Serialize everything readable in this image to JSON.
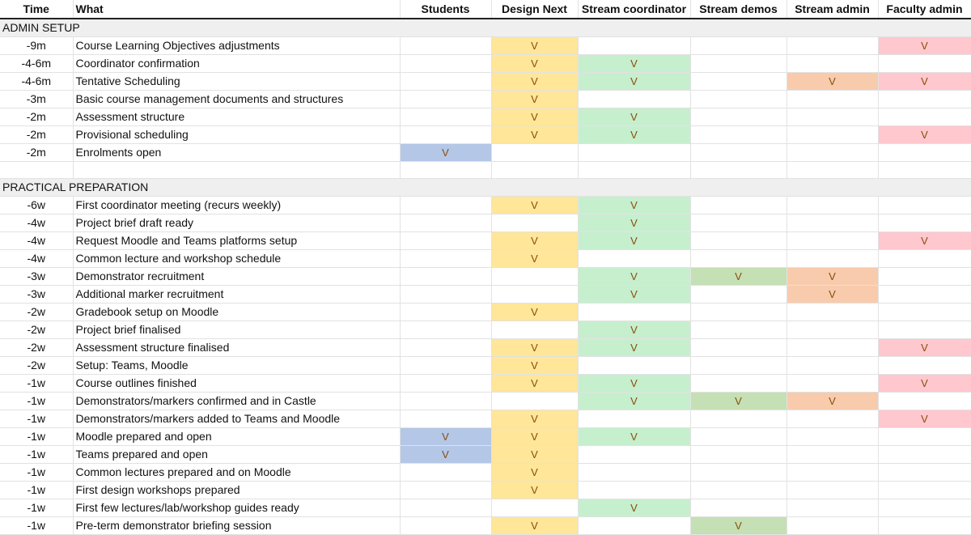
{
  "colors": {
    "students": "#b4c7e7",
    "design_next": "#ffe699",
    "stream_coordinator": "#c6efce",
    "stream_demos": "#c5e0b4",
    "stream_admin": "#f8cbad",
    "faculty_admin": "#ffc7ce"
  },
  "headers": {
    "time": "Time",
    "what": "What",
    "roles": [
      "Students",
      "Design Next",
      "Stream coordinator",
      "Stream demos",
      "Stream admin",
      "Faculty admin"
    ]
  },
  "mark": "V",
  "sections": [
    {
      "title": "ADMIN SETUP",
      "rows": [
        {
          "time": "-9m",
          "what": "Course Learning Objectives adjustments",
          "marks": [
            0,
            1,
            0,
            0,
            0,
            1
          ]
        },
        {
          "time": "-4-6m",
          "what": "Coordinator confirmation",
          "marks": [
            0,
            1,
            1,
            0,
            0,
            0
          ]
        },
        {
          "time": "-4-6m",
          "what": "Tentative Scheduling",
          "marks": [
            0,
            1,
            1,
            0,
            1,
            1
          ]
        },
        {
          "time": "-3m",
          "what": "Basic course management documents and structures",
          "marks": [
            0,
            1,
            0,
            0,
            0,
            0
          ]
        },
        {
          "time": "-2m",
          "what": "Assessment structure",
          "marks": [
            0,
            1,
            1,
            0,
            0,
            0
          ]
        },
        {
          "time": "-2m",
          "what": "Provisional scheduling",
          "marks": [
            0,
            1,
            1,
            0,
            0,
            1
          ]
        },
        {
          "time": "-2m",
          "what": "Enrolments open",
          "marks": [
            1,
            0,
            0,
            0,
            0,
            0
          ]
        }
      ]
    },
    {
      "title": "PRACTICAL PREPARATION",
      "rows": [
        {
          "time": "-6w",
          "what": "First coordinator meeting (recurs weekly)",
          "marks": [
            0,
            1,
            1,
            0,
            0,
            0
          ]
        },
        {
          "time": "-4w",
          "what": "Project brief draft ready",
          "marks": [
            0,
            0,
            1,
            0,
            0,
            0
          ]
        },
        {
          "time": "-4w",
          "what": "Request Moodle and Teams platforms setup",
          "marks": [
            0,
            1,
            1,
            0,
            0,
            1
          ]
        },
        {
          "time": "-4w",
          "what": "Common lecture and workshop schedule",
          "marks": [
            0,
            1,
            0,
            0,
            0,
            0
          ]
        },
        {
          "time": "-3w",
          "what": "Demonstrator recruitment",
          "marks": [
            0,
            0,
            1,
            1,
            1,
            0
          ]
        },
        {
          "time": "-3w",
          "what": "Additional marker recruitment",
          "marks": [
            0,
            0,
            1,
            0,
            1,
            0
          ]
        },
        {
          "time": "-2w",
          "what": "Gradebook setup on Moodle",
          "marks": [
            0,
            1,
            0,
            0,
            0,
            0
          ]
        },
        {
          "time": "-2w",
          "what": "Project brief finalised",
          "marks": [
            0,
            0,
            1,
            0,
            0,
            0
          ]
        },
        {
          "time": "-2w",
          "what": "Assessment structure finalised",
          "marks": [
            0,
            1,
            1,
            0,
            0,
            1
          ]
        },
        {
          "time": "-2w",
          "what": "Setup: Teams, Moodle",
          "marks": [
            0,
            1,
            0,
            0,
            0,
            0
          ]
        },
        {
          "time": "-1w",
          "what": "Course outlines finished",
          "marks": [
            0,
            1,
            1,
            0,
            0,
            1
          ]
        },
        {
          "time": "-1w",
          "what": "Demonstrators/markers confirmed and in Castle",
          "marks": [
            0,
            0,
            1,
            1,
            1,
            0
          ]
        },
        {
          "time": "-1w",
          "what": "Demonstrators/markers added to Teams and Moodle",
          "marks": [
            0,
            1,
            0,
            0,
            0,
            1
          ]
        },
        {
          "time": "-1w",
          "what": "Moodle prepared and open",
          "marks": [
            1,
            1,
            1,
            0,
            0,
            0
          ]
        },
        {
          "time": "-1w",
          "what": "Teams prepared and open",
          "marks": [
            1,
            1,
            0,
            0,
            0,
            0
          ]
        },
        {
          "time": "-1w",
          "what": "Common lectures prepared and on Moodle",
          "marks": [
            0,
            1,
            0,
            0,
            0,
            0
          ]
        },
        {
          "time": "-1w",
          "what": "First design workshops prepared",
          "marks": [
            0,
            1,
            0,
            0,
            0,
            0
          ]
        },
        {
          "time": "-1w",
          "what": "First few lectures/lab/workshop guides ready",
          "marks": [
            0,
            0,
            1,
            0,
            0,
            0
          ]
        },
        {
          "time": "-1w",
          "what": "Pre-term demonstrator briefing session",
          "marks": [
            0,
            1,
            0,
            1,
            0,
            0
          ]
        }
      ]
    }
  ]
}
